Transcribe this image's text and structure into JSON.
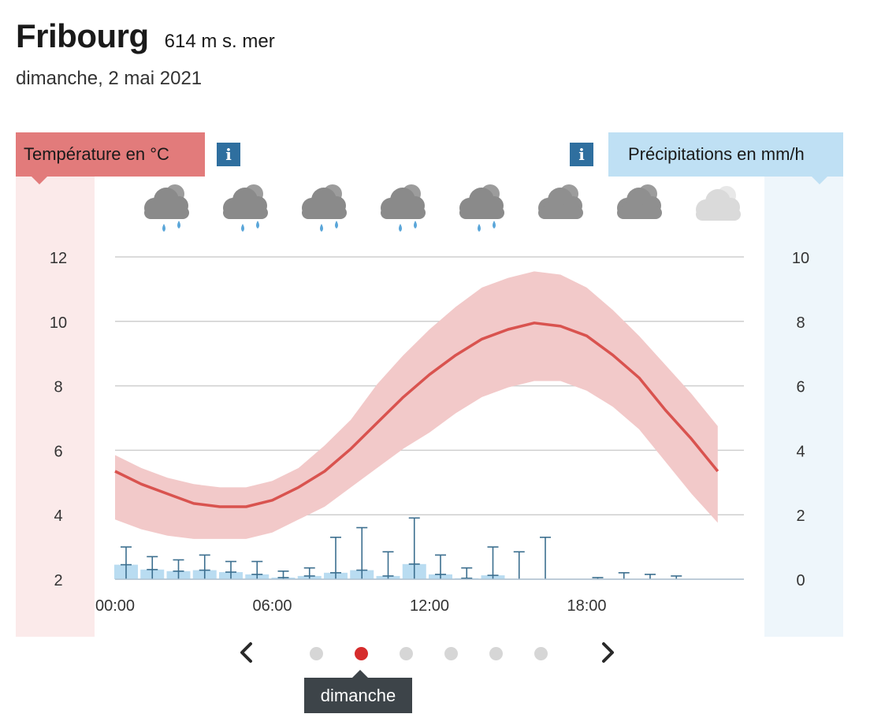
{
  "header": {
    "city": "Fribourg",
    "altitude": "614 m s. mer",
    "date": "dimanche, 2 mai 2021"
  },
  "legend": {
    "temperature": "Température en °C",
    "precipitation": "Précipitations en mm/h",
    "info_glyph": "i",
    "temperature_color": "#e27b7b",
    "precipitation_color": "#bfe0f4"
  },
  "chart_data": {
    "type": "line",
    "x_ticks": [
      "00:00",
      "06:00",
      "12:00",
      "18:00"
    ],
    "temperature_axis": {
      "ticks": [
        "12",
        "10",
        "8",
        "6",
        "4",
        "2"
      ],
      "range": [
        2,
        12
      ]
    },
    "precipitation_axis": {
      "ticks": [
        "10",
        "8",
        "6",
        "4",
        "2",
        "0"
      ],
      "range": [
        0,
        10
      ]
    },
    "hours": [
      0,
      1,
      2,
      3,
      4,
      5,
      6,
      7,
      8,
      9,
      10,
      11,
      12,
      13,
      14,
      15,
      16,
      17,
      18,
      19,
      20,
      21,
      22,
      23
    ],
    "temperature": [
      5.35,
      4.95,
      4.65,
      4.35,
      4.25,
      4.25,
      4.45,
      4.85,
      5.35,
      6.05,
      6.85,
      7.65,
      8.35,
      8.95,
      9.45,
      9.75,
      9.95,
      9.85,
      9.55,
      8.95,
      8.25,
      7.25,
      6.35,
      5.35
    ],
    "temperature_min": [
      3.85,
      3.55,
      3.35,
      3.25,
      3.25,
      3.25,
      3.45,
      3.85,
      4.25,
      4.85,
      5.45,
      6.05,
      6.55,
      7.15,
      7.65,
      7.95,
      8.15,
      8.15,
      7.85,
      7.35,
      6.65,
      5.65,
      4.65,
      3.75
    ],
    "temperature_max": [
      5.85,
      5.45,
      5.15,
      4.95,
      4.85,
      4.85,
      5.05,
      5.45,
      6.15,
      6.95,
      8.05,
      8.95,
      9.75,
      10.45,
      11.05,
      11.35,
      11.55,
      11.45,
      11.05,
      10.35,
      9.55,
      8.65,
      7.75,
      6.75
    ],
    "precipitation": [
      0.45,
      0.3,
      0.25,
      0.28,
      0.22,
      0.15,
      0.05,
      0.1,
      0.2,
      0.28,
      0.1,
      0.47,
      0.15,
      0.03,
      0.12,
      0,
      0,
      0,
      0,
      0,
      0,
      0,
      0,
      0
    ],
    "precipitation_max": [
      1.0,
      0.7,
      0.6,
      0.75,
      0.55,
      0.55,
      0.25,
      0.35,
      1.3,
      1.6,
      0.85,
      1.9,
      0.75,
      0.35,
      1.0,
      0.85,
      1.3,
      0,
      0.05,
      0.2,
      0.15,
      0.1,
      0,
      0
    ],
    "grid": true,
    "weather_icons": [
      "cloud-rain-icon",
      "cloud-rain-icon",
      "cloud-rain-icon",
      "cloud-rain-icon",
      "cloud-rain-icon",
      "cloud-icon",
      "cloud-icon",
      "cloud-light-icon"
    ]
  },
  "pager": {
    "dot_count": 6,
    "active_index": 1,
    "active_label": "dimanche",
    "prev_icon": "chevron-left-icon",
    "next_icon": "chevron-right-icon"
  }
}
